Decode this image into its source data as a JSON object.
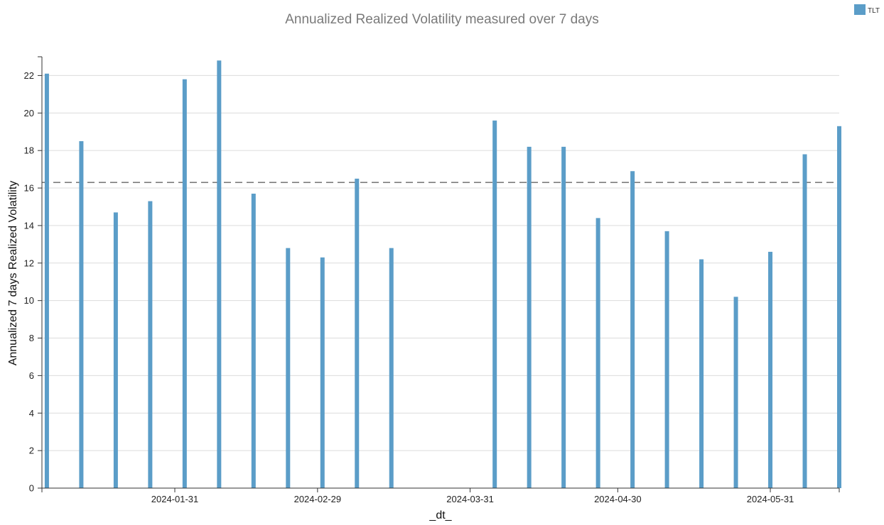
{
  "chart_data": {
    "type": "bar",
    "title": "Annualized Realized Volatility measured over 7 days",
    "xlabel": "_dt_",
    "ylabel": "Annualized 7 days Realized Volatility",
    "legend": [
      "TLT"
    ],
    "legend_position": "top-right",
    "series": [
      {
        "name": "TLT",
        "color": "#5b9dc8",
        "x": [
          "2024-01-05",
          "2024-01-12",
          "2024-01-19",
          "2024-01-26",
          "2024-02-02",
          "2024-02-09",
          "2024-02-16",
          "2024-02-23",
          "2024-03-01",
          "2024-03-08",
          "2024-03-15",
          "2024-04-05",
          "2024-04-12",
          "2024-04-19",
          "2024-04-26",
          "2024-05-03",
          "2024-05-10",
          "2024-05-17",
          "2024-05-24",
          "2024-05-31",
          "2024-06-07",
          "2024-06-14"
        ],
        "values": [
          22.1,
          18.5,
          14.7,
          15.3,
          21.8,
          22.8,
          15.7,
          12.8,
          12.3,
          16.5,
          12.8,
          19.6,
          18.2,
          18.2,
          14.4,
          16.9,
          13.7,
          12.2,
          10.2,
          12.6,
          17.8,
          19.3
        ]
      }
    ],
    "reference_line": {
      "value": 16.3,
      "style": "dashed",
      "color": "#555555"
    },
    "xticks": [
      "2024-01-31",
      "2024-02-29",
      "2024-03-31",
      "2024-04-30",
      "2024-05-31"
    ],
    "yticks": [
      0,
      2,
      4,
      6,
      8,
      10,
      12,
      14,
      16,
      18,
      20,
      22
    ],
    "xlim": [
      "2024-01-04",
      "2024-06-14"
    ],
    "ylim": [
      0,
      23
    ],
    "grid": {
      "y": true,
      "x": false
    }
  }
}
